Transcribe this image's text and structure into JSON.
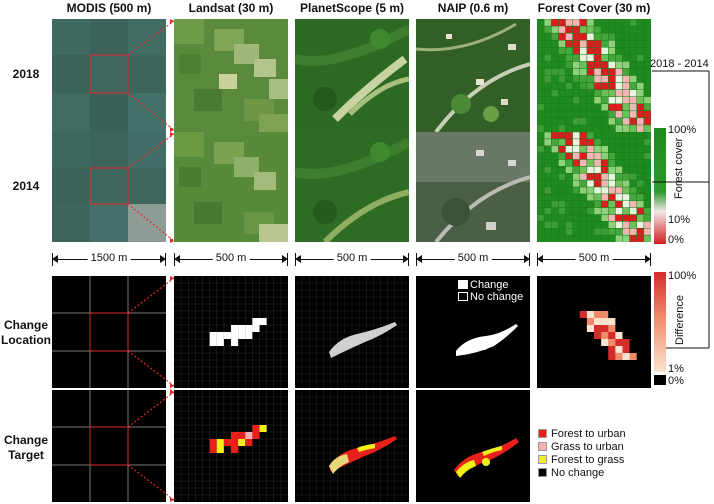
{
  "columns": {
    "modis": "MODIS (500 m)",
    "landsat": "Landsat (30 m)",
    "planetscope": "PlanetScope  (5 m)",
    "naip": "NAIP (0.6 m)",
    "forest": "Forest Cover (30 m)"
  },
  "rows": {
    "y2018": "2018",
    "y2014": "2014",
    "change_location": [
      "Change",
      "Location"
    ],
    "change_target": [
      "Change",
      "Target"
    ]
  },
  "scale_bars": [
    "1500 m",
    "500 m",
    "500 m",
    "500 m",
    "500 m"
  ],
  "forest_legend": {
    "title": "Forest cover",
    "ticks": [
      "100%",
      "10%",
      "0%"
    ],
    "colors": {
      "top": "#1e8a1e",
      "mid": "#f3e6e6",
      "bottom": "#d42020"
    }
  },
  "difference_legend": {
    "title": "Difference",
    "ticks": [
      "100%",
      "1%",
      "0%"
    ],
    "colors": {
      "top": "#d62b2b",
      "bottom": "#fbe3cf",
      "zero": "#000000"
    }
  },
  "change_arrow_label": "2018 - 2014",
  "naip_legend": {
    "change": "Change",
    "no_change": "No change"
  },
  "target_legend": [
    {
      "label": "Forest to urban",
      "color": "#e8201a"
    },
    {
      "label": "Grass to urban",
      "color": "#f2b0ae"
    },
    {
      "label": "Forest to grass",
      "color": "#f2f019"
    },
    {
      "label": "No change",
      "color": "#000000"
    }
  ]
}
